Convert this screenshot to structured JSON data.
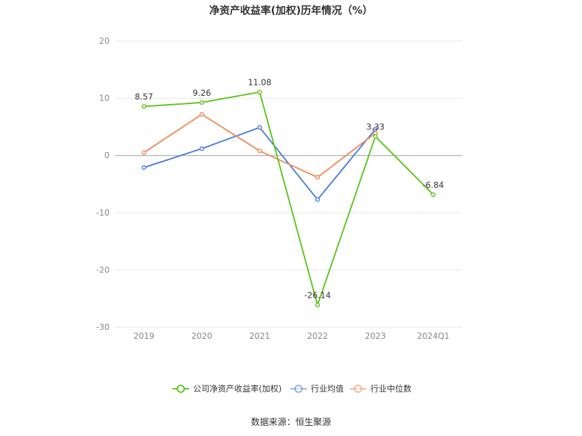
{
  "chart_data": {
    "type": "line",
    "title": "净资产收益率(加权)历年情况（%）",
    "categories": [
      "2019",
      "2020",
      "2021",
      "2022",
      "2023",
      "2024Q1"
    ],
    "ylim": [
      -30,
      20
    ],
    "yticks": [
      20,
      10,
      0,
      -10,
      -20,
      -30
    ],
    "grid": true,
    "legend_position": "bottom",
    "series": [
      {
        "name": "公司净资产收益率(加权)",
        "color": "#5cc51c",
        "values": [
          8.57,
          9.26,
          11.08,
          -26.14,
          3.33,
          -6.84
        ],
        "labels": [
          "8.57",
          "9.26",
          "11.08",
          "-26.14",
          "3.33",
          "-6.84"
        ]
      },
      {
        "name": "行业均值",
        "color": "#4a7fd9",
        "values": [
          -2.1,
          1.2,
          4.9,
          -7.7,
          4.6,
          null
        ]
      },
      {
        "name": "行业中位数",
        "color": "#f08c5c",
        "values": [
          0.5,
          7.2,
          0.8,
          -3.8,
          3.9,
          null
        ]
      }
    ]
  },
  "source": "数据来源：恒生聚源"
}
